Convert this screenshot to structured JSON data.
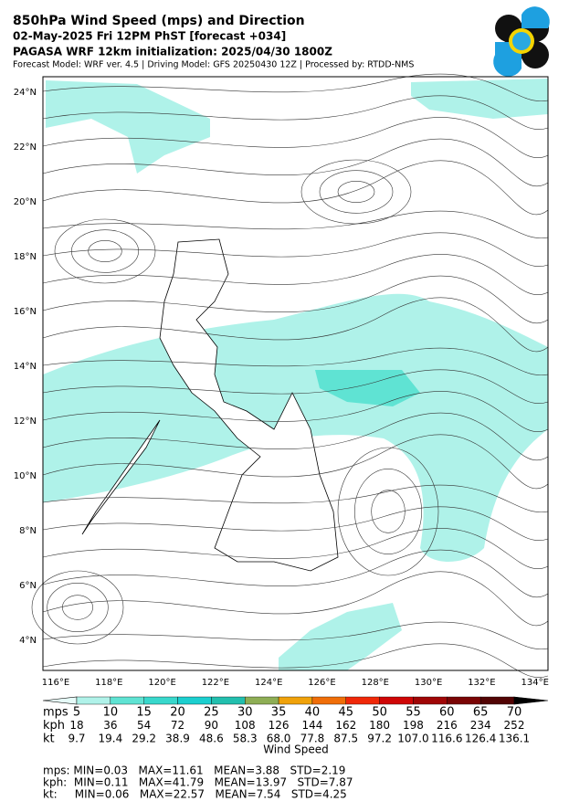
{
  "header": {
    "title": "850hPa Wind Speed (mps) and Direction",
    "line2": "02-May-2025 Fri 12PM PhST [forecast +034]",
    "line3": "PAGASA WRF 12km initialization: 2025/04/30 1800Z",
    "line4": "Forecast Model: WRF ver. 4.5 | Driving Model: GFS 20250430 12Z | Processed by: RTDD-NMS"
  },
  "map": {
    "lat_labels": [
      "24°N",
      "22°N",
      "20°N",
      "18°N",
      "16°N",
      "14°N",
      "12°N",
      "10°N",
      "8°N",
      "6°N",
      "4°N"
    ],
    "lon_labels": [
      "116°E",
      "118°E",
      "120°E",
      "122°E",
      "124°E",
      "126°E",
      "128°E",
      "130°E",
      "132°E",
      "134°E"
    ]
  },
  "colorbar": {
    "under_color": "#e6fbf8",
    "over_color": "#000000",
    "colors": [
      "#b0f2e9",
      "#5fe3d3",
      "#38d8cc",
      "#1ccfcf",
      "#22bfae",
      "#8eae55",
      "#f0a20a",
      "#f06e08",
      "#f02808",
      "#cf0606",
      "#a00606",
      "#7a0404",
      "#520404"
    ],
    "rows": [
      {
        "unit": "mps",
        "labels": [
          "5",
          "10",
          "15",
          "20",
          "25",
          "30",
          "35",
          "40",
          "45",
          "50",
          "55",
          "60",
          "65",
          "70"
        ]
      },
      {
        "unit": "kph",
        "labels": [
          "18",
          "36",
          "54",
          "72",
          "90",
          "108",
          "126",
          "144",
          "162",
          "180",
          "198",
          "216",
          "234",
          "252"
        ]
      },
      {
        "unit": "kt",
        "labels": [
          "9.7",
          "19.4",
          "29.2",
          "38.9",
          "48.6",
          "58.3",
          "68.0",
          "77.8",
          "87.5",
          "97.2",
          "107.0",
          "116.6",
          "126.4",
          "136.1"
        ]
      }
    ],
    "title": "Wind Speed"
  },
  "stats": [
    "mps: MIN=0.03   MAX=11.61   MEAN=3.88   STD=2.19",
    "kph:  MIN=0.11   MAX=41.79   MEAN=13.97   STD=7.87",
    "kt:     MIN=0.06   MAX=22.57   MEAN=7.54   STD=4.25"
  ]
}
